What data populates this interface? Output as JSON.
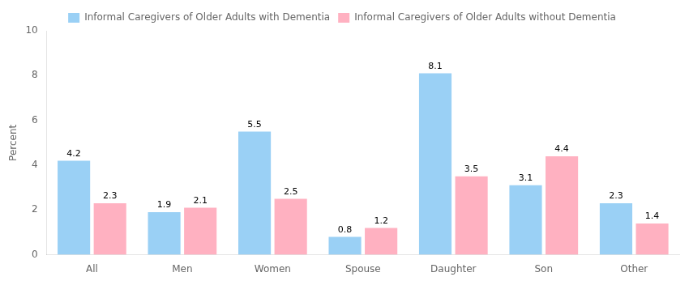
{
  "chart_data": {
    "type": "bar",
    "categories": [
      "All",
      "Men",
      "Women",
      "Spouse",
      "Daughter",
      "Son",
      "Other"
    ],
    "series": [
      {
        "name": "Informal Caregivers of Older Adults with Dementia",
        "values": [
          4.2,
          1.9,
          5.5,
          0.8,
          8.1,
          3.1,
          2.3
        ]
      },
      {
        "name": "Informal Caregivers of Older Adults without Dementia",
        "values": [
          2.3,
          2.1,
          2.5,
          1.2,
          3.5,
          4.4,
          1.4
        ]
      }
    ],
    "ylabel": "Percent",
    "ylim": [
      0,
      10
    ],
    "yticks": [
      0,
      2,
      4,
      6,
      8,
      10
    ],
    "grid": false,
    "legend": "top",
    "data_labels": true
  }
}
